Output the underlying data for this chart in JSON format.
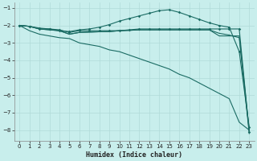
{
  "xlabel": "Humidex (Indice chaleur)",
  "bg_color": "#c8eeec",
  "grid_color": "#b0dbd8",
  "line_color": "#1a6b63",
  "xlim": [
    -0.5,
    23.5
  ],
  "ylim": [
    -8.6,
    -0.7
  ],
  "yticks": [
    -8,
    -7,
    -6,
    -5,
    -4,
    -3,
    -2,
    -1
  ],
  "xticks": [
    0,
    1,
    2,
    3,
    4,
    5,
    6,
    7,
    8,
    9,
    10,
    11,
    12,
    13,
    14,
    15,
    16,
    17,
    18,
    19,
    20,
    21,
    22,
    23
  ],
  "curve_peaked_x": [
    0,
    1,
    2,
    3,
    4,
    5,
    6,
    7,
    8,
    9,
    10,
    11,
    12,
    13,
    14,
    15,
    16,
    17,
    18,
    19,
    20,
    21,
    22,
    23
  ],
  "curve_peaked_y": [
    -2.0,
    -2.05,
    -2.2,
    -2.2,
    -2.3,
    -2.35,
    -2.25,
    -2.2,
    -2.1,
    -1.95,
    -1.75,
    -1.6,
    -1.45,
    -1.3,
    -1.15,
    -1.1,
    -1.25,
    -1.45,
    -1.65,
    -1.85,
    -2.0,
    -2.1,
    -3.5,
    -7.85
  ],
  "curve_flat1_x": [
    0,
    1,
    2,
    3,
    4,
    5,
    6,
    7,
    8,
    9,
    10,
    11,
    12,
    13,
    14,
    15,
    16,
    17,
    18,
    19,
    20,
    21,
    22,
    23
  ],
  "curve_flat1_y": [
    -2.0,
    -2.05,
    -2.15,
    -2.2,
    -2.25,
    -2.4,
    -2.3,
    -2.3,
    -2.3,
    -2.3,
    -2.3,
    -2.25,
    -2.2,
    -2.2,
    -2.2,
    -2.2,
    -2.2,
    -2.2,
    -2.2,
    -2.2,
    -2.2,
    -2.2,
    -2.2,
    -8.1
  ],
  "curve_flat2_x": [
    0,
    1,
    2,
    3,
    4,
    5,
    6,
    7,
    8,
    9,
    10,
    11,
    12,
    13,
    14,
    15,
    16,
    17,
    18,
    19,
    20,
    21,
    22,
    23
  ],
  "curve_flat2_y": [
    -2.0,
    -2.05,
    -2.2,
    -2.25,
    -2.3,
    -2.5,
    -2.4,
    -2.38,
    -2.36,
    -2.35,
    -2.3,
    -2.28,
    -2.25,
    -2.25,
    -2.25,
    -2.25,
    -2.25,
    -2.25,
    -2.25,
    -2.25,
    -2.6,
    -2.6,
    -2.6,
    -8.0
  ],
  "curve_flat3_x": [
    0,
    1,
    2,
    3,
    4,
    5,
    6,
    7,
    8,
    9,
    10,
    11,
    12,
    13,
    14,
    15,
    16,
    17,
    18,
    19,
    20,
    21,
    22,
    23
  ],
  "curve_flat3_y": [
    -2.0,
    -2.05,
    -2.2,
    -2.25,
    -2.3,
    -2.5,
    -2.4,
    -2.38,
    -2.36,
    -2.35,
    -2.3,
    -2.28,
    -2.25,
    -2.25,
    -2.25,
    -2.25,
    -2.25,
    -2.25,
    -2.25,
    -2.25,
    -2.45,
    -2.55,
    -2.7,
    -8.2
  ],
  "curve_diag_x": [
    0,
    1,
    2,
    3,
    4,
    5,
    6,
    7,
    8,
    9,
    10,
    11,
    12,
    13,
    14,
    15,
    16,
    17,
    18,
    19,
    20,
    21,
    22,
    23
  ],
  "curve_diag_y": [
    -2.0,
    -2.3,
    -2.5,
    -2.6,
    -2.7,
    -2.75,
    -3.0,
    -3.1,
    -3.2,
    -3.4,
    -3.5,
    -3.7,
    -3.9,
    -4.1,
    -4.3,
    -4.5,
    -4.8,
    -5.0,
    -5.3,
    -5.6,
    -5.9,
    -6.2,
    -7.55,
    -8.0
  ]
}
